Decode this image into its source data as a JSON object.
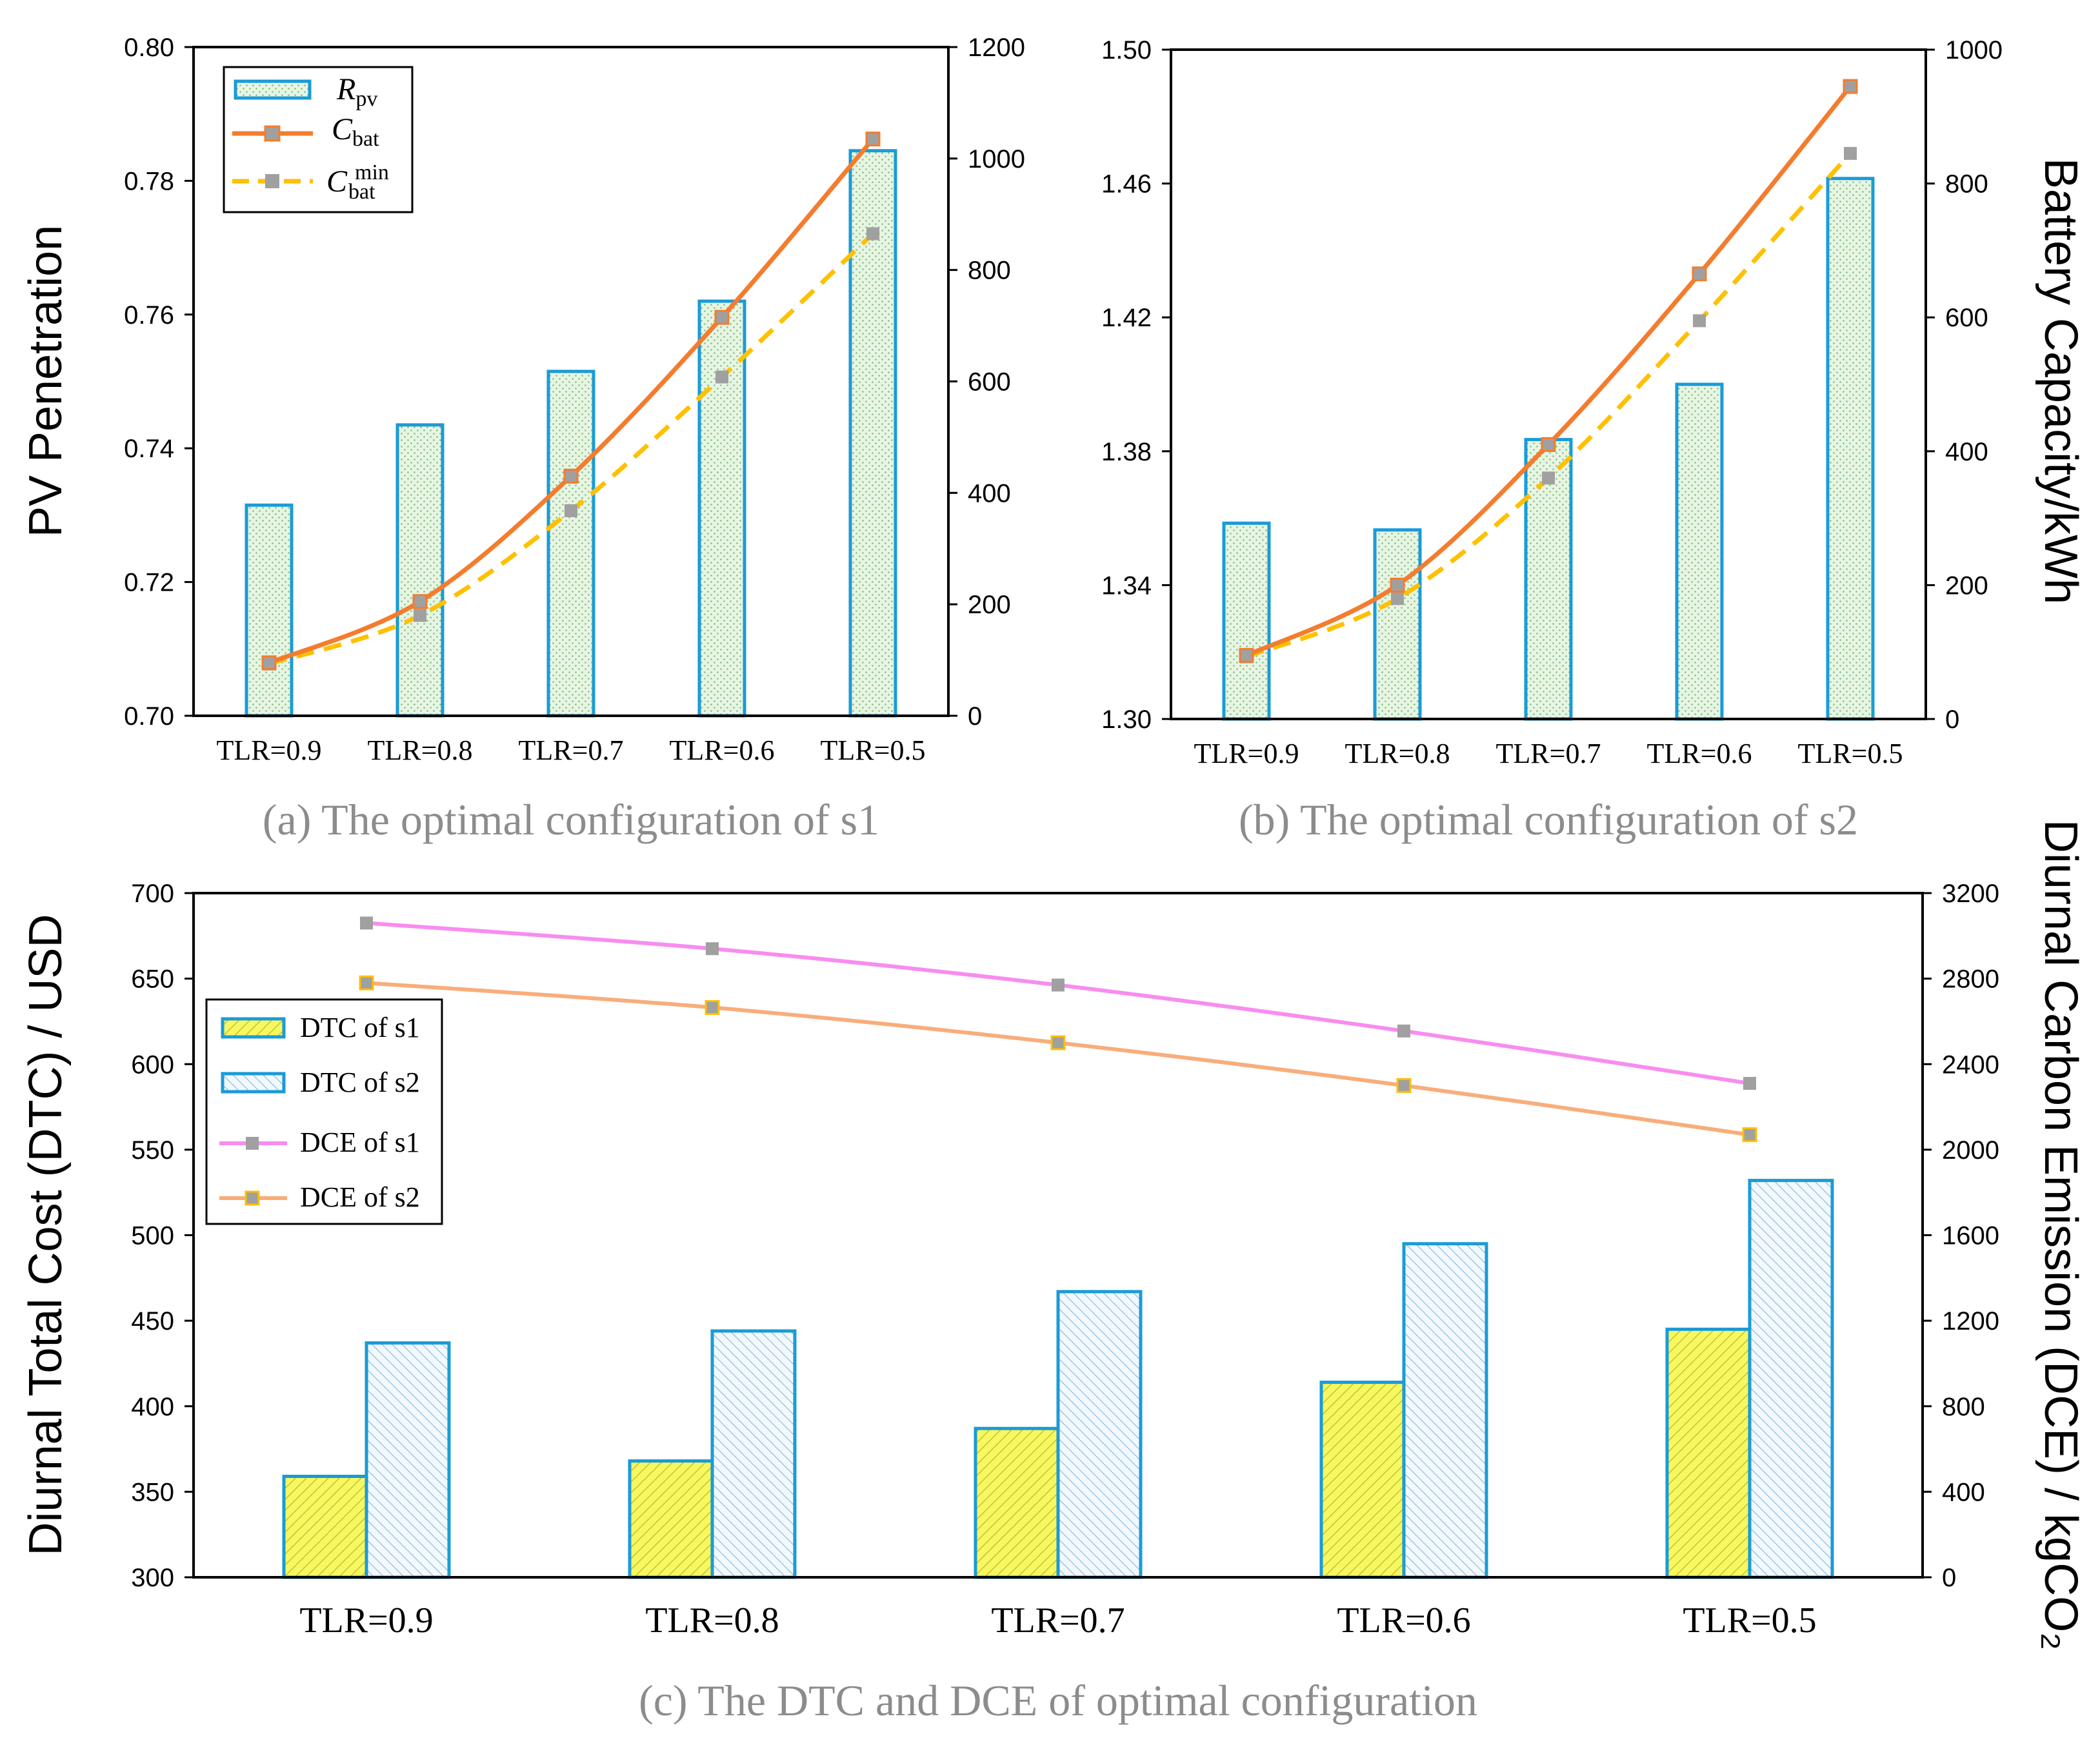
{
  "chart_data": [
    {
      "id": "a",
      "type": "bar+line",
      "caption": "(a) The optimal configuration of s1",
      "categories": [
        "TLR=0.9",
        "TLR=0.8",
        "TLR=0.7",
        "TLR=0.6",
        "TLR=0.5"
      ],
      "ylabel_left": "PV Penetration",
      "ylim_left": [
        0.7,
        0.8
      ],
      "yticks_left": [
        "0.70",
        "0.72",
        "0.74",
        "0.76",
        "0.78",
        "0.80"
      ],
      "ylim_right": [
        0,
        1200
      ],
      "yticks_right": [
        "0",
        "200",
        "400",
        "600",
        "800",
        "1000",
        "1200"
      ],
      "series": [
        {
          "name": "R_pv",
          "legend": {
            "main": "R",
            "sub": "pv"
          },
          "kind": "bar",
          "axis": "left",
          "values": [
            0.7315,
            0.7435,
            0.7515,
            0.762,
            0.7845
          ]
        },
        {
          "name": "C_bat",
          "legend": {
            "main": "C",
            "sub": "bat"
          },
          "kind": "line",
          "axis": "right",
          "values": [
            95,
            205,
            430,
            715,
            1035
          ]
        },
        {
          "name": "C_bat^min",
          "legend": {
            "main": "C",
            "sub": "bat",
            "sup": "min"
          },
          "kind": "dashed",
          "axis": "right",
          "values": [
            93,
            180,
            368,
            608,
            865
          ]
        }
      ],
      "colors": {
        "bar_fill": "#e3f2df",
        "bar_stroke": "#1a9bd7",
        "line": "#f47c2e",
        "dashed": "#ffc000",
        "marker": "#a0a0a0"
      }
    },
    {
      "id": "b",
      "type": "bar+line",
      "caption": "(b) The optimal configuration of s2",
      "categories": [
        "TLR=0.9",
        "TLR=0.8",
        "TLR=0.7",
        "TLR=0.6",
        "TLR=0.5"
      ],
      "ylabel_right": "Battery Capacity/kWh",
      "ylim_left": [
        1.3,
        1.5
      ],
      "yticks_left": [
        "1.30",
        "1.34",
        "1.38",
        "1.42",
        "1.46",
        "1.50"
      ],
      "ylim_right": [
        0,
        1000
      ],
      "yticks_right": [
        "0",
        "200",
        "400",
        "600",
        "800",
        "1000"
      ],
      "series": [
        {
          "name": "R_pv",
          "kind": "bar",
          "axis": "left",
          "values": [
            1.3585,
            1.3565,
            1.3835,
            1.4,
            1.4615
          ]
        },
        {
          "name": "C_bat",
          "kind": "line",
          "axis": "right",
          "values": [
            95,
            200,
            410,
            665,
            945
          ]
        },
        {
          "name": "C_bat^min",
          "kind": "dashed",
          "axis": "right",
          "values": [
            93,
            180,
            360,
            595,
            845
          ]
        }
      ],
      "colors": {
        "bar_fill": "#e3f2df",
        "bar_stroke": "#1a9bd7",
        "line": "#f47c2e",
        "dashed": "#ffc000",
        "marker": "#a0a0a0"
      }
    },
    {
      "id": "c",
      "type": "bar+line",
      "caption": "(c) The DTC and DCE of optimal configuration",
      "categories": [
        "TLR=0.9",
        "TLR=0.8",
        "TLR=0.7",
        "TLR=0.6",
        "TLR=0.5"
      ],
      "ylabel_left": "Diurnal Total Cost (DTC) / USD",
      "ylabel_right": "Diurnal Carbon Emission (DCE) / kgCO₂",
      "ylim_left": [
        300,
        700
      ],
      "yticks_left": [
        "300",
        "350",
        "400",
        "450",
        "500",
        "550",
        "600",
        "650",
        "700"
      ],
      "ylim_right": [
        0,
        3200
      ],
      "yticks_right": [
        "0",
        "400",
        "800",
        "1200",
        "1600",
        "2000",
        "2400",
        "2800",
        "3200"
      ],
      "series": [
        {
          "name": "DTC of s1",
          "kind": "bar",
          "axis": "left",
          "values": [
            359,
            368,
            387,
            414,
            445
          ]
        },
        {
          "name": "DTC of s2",
          "kind": "bar",
          "axis": "left",
          "values": [
            437,
            444,
            467,
            495,
            532
          ]
        },
        {
          "name": "DCE of s1",
          "kind": "line",
          "axis": "right",
          "values": [
            3060,
            2940,
            2770,
            2555,
            2310
          ]
        },
        {
          "name": "DCE of s2",
          "kind": "line",
          "axis": "right",
          "values": [
            2780,
            2665,
            2500,
            2300,
            2070
          ]
        }
      ],
      "colors": {
        "bar1_fill": "#f5f55a",
        "bar2_fill": "#e6f1fa",
        "bar_stroke": "#1a9bd7",
        "dce1": "#f88cf0",
        "dce2": "#f9ad7a",
        "marker": "#a0a0a0",
        "marker2_stroke": "#ffc000"
      }
    }
  ]
}
